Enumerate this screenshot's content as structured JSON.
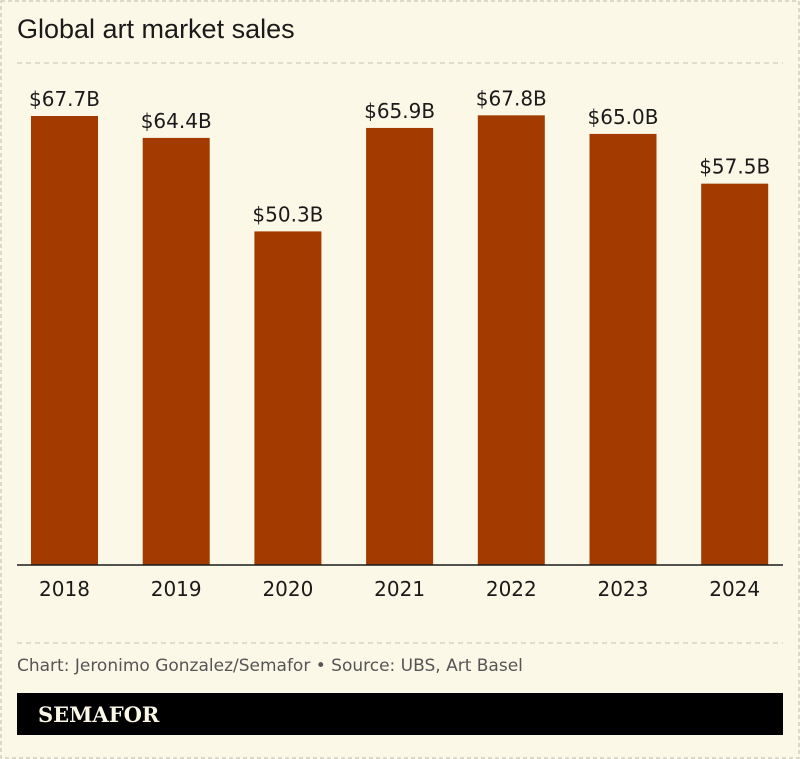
{
  "chart_data": {
    "type": "bar",
    "title": "Global art market sales",
    "categories": [
      "2018",
      "2019",
      "2020",
      "2021",
      "2022",
      "2023",
      "2024"
    ],
    "values": [
      67.7,
      64.4,
      50.3,
      65.9,
      67.8,
      65.0,
      57.5
    ],
    "data_labels": [
      "$67.7B",
      "$64.4B",
      "$50.3B",
      "$65.9B",
      "$67.8B",
      "$65.0B",
      "$57.5B"
    ],
    "unit": "billion USD",
    "ylim": [
      0,
      67.8
    ],
    "grid": false,
    "bar_color": "#a33a00"
  },
  "footer": {
    "credit": "Chart: Jeronimo Gonzalez/Semafor • Source: UBS, Art Basel",
    "brand": "SEMAFOR"
  }
}
